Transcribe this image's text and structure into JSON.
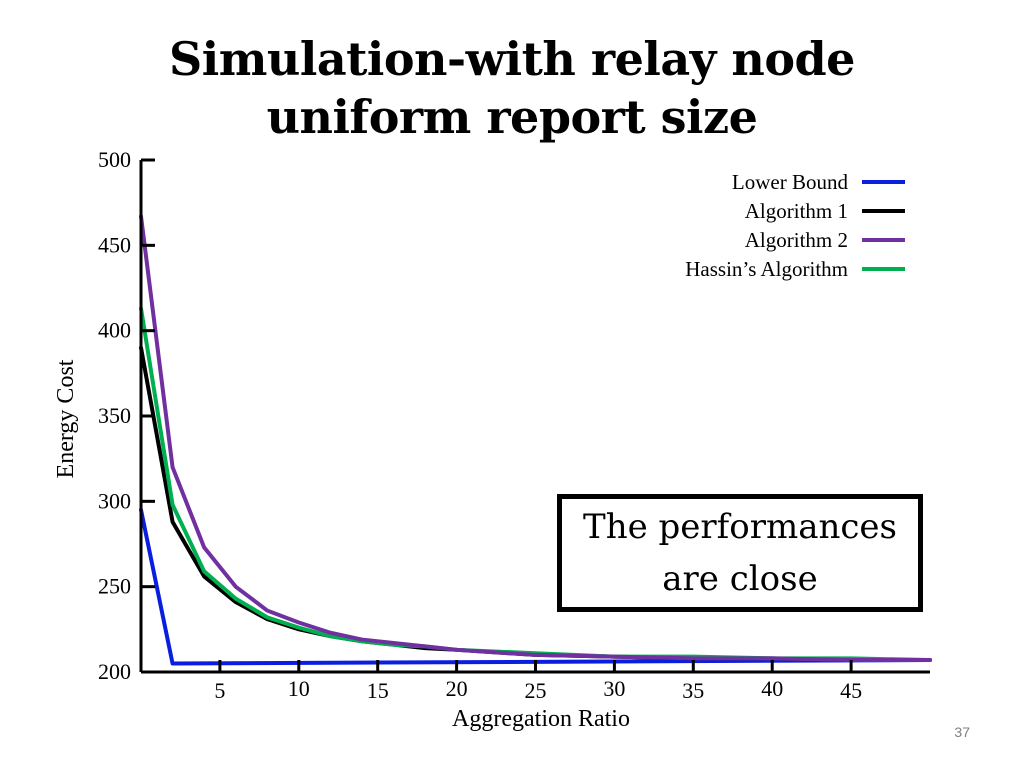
{
  "slide": {
    "title_line1": "Simulation-with relay node",
    "title_line2": "uniform report size",
    "callout_line1": "The performances",
    "callout_line2": "are close",
    "page_number": "37"
  },
  "chart_data": {
    "type": "line",
    "xlabel": "Aggregation Ratio",
    "ylabel": "Energy Cost",
    "xlim": [
      0,
      50
    ],
    "ylim": [
      200,
      500
    ],
    "x_ticks": [
      5,
      10,
      15,
      20,
      25,
      30,
      35,
      40,
      45
    ],
    "y_ticks": [
      200,
      250,
      300,
      350,
      400,
      450,
      500
    ],
    "grid": false,
    "legend_position": "top-right",
    "series": [
      {
        "name": "Lower Bound",
        "color": "#0a1ee0",
        "x": [
          0,
          2,
          50
        ],
        "y": [
          295,
          205,
          207
        ]
      },
      {
        "name": "Algorithm 1",
        "color": "#000000",
        "x": [
          0,
          2,
          4,
          6,
          8,
          10,
          12,
          14,
          16,
          18,
          20,
          25,
          30,
          35,
          40,
          45,
          50
        ],
        "y": [
          390,
          288,
          256,
          241,
          231,
          225,
          221,
          218,
          216,
          214,
          213,
          210,
          209,
          208,
          208,
          207,
          207
        ]
      },
      {
        "name": "Algorithm 2",
        "color": "#7030a0",
        "x": [
          0,
          2,
          4,
          6,
          8,
          10,
          12,
          14,
          16,
          18,
          20,
          25,
          30,
          35,
          40,
          45,
          50
        ],
        "y": [
          467,
          320,
          273,
          250,
          236,
          229,
          223,
          219,
          217,
          215,
          213,
          210,
          209,
          208,
          208,
          207,
          207
        ]
      },
      {
        "name": "Hassin’s Algorithm",
        "color": "#00b050",
        "x": [
          0,
          2,
          4,
          6,
          8,
          10,
          12,
          14,
          16,
          18,
          20,
          25,
          30,
          35,
          40,
          45,
          50
        ],
        "y": [
          413,
          298,
          259,
          243,
          232,
          226,
          221,
          218,
          216,
          215,
          213,
          211,
          209,
          209,
          208,
          208,
          207
        ]
      }
    ]
  }
}
